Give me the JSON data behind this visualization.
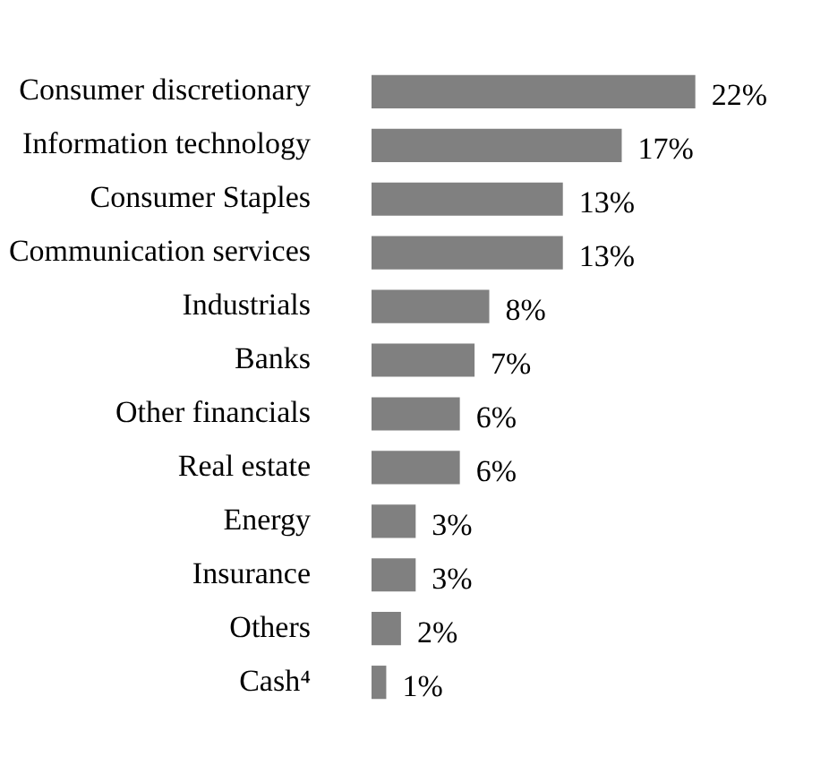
{
  "chart_data": {
    "type": "bar",
    "orientation": "horizontal",
    "categories": [
      "Consumer discretionary",
      "Information technology",
      "Consumer Staples",
      "Communication services",
      "Industrials",
      "Banks",
      "Other financials",
      "Real estate",
      "Energy",
      "Insurance",
      "Others",
      "Cash⁴"
    ],
    "values": [
      22,
      17,
      13,
      13,
      8,
      7,
      6,
      6,
      3,
      3,
      2,
      1
    ],
    "value_labels": [
      "22%",
      "17%",
      "13%",
      "13%",
      "8%",
      "7%",
      "6%",
      "6%",
      "3%",
      "3%",
      "2%",
      "1%"
    ],
    "color": "#808080"
  }
}
